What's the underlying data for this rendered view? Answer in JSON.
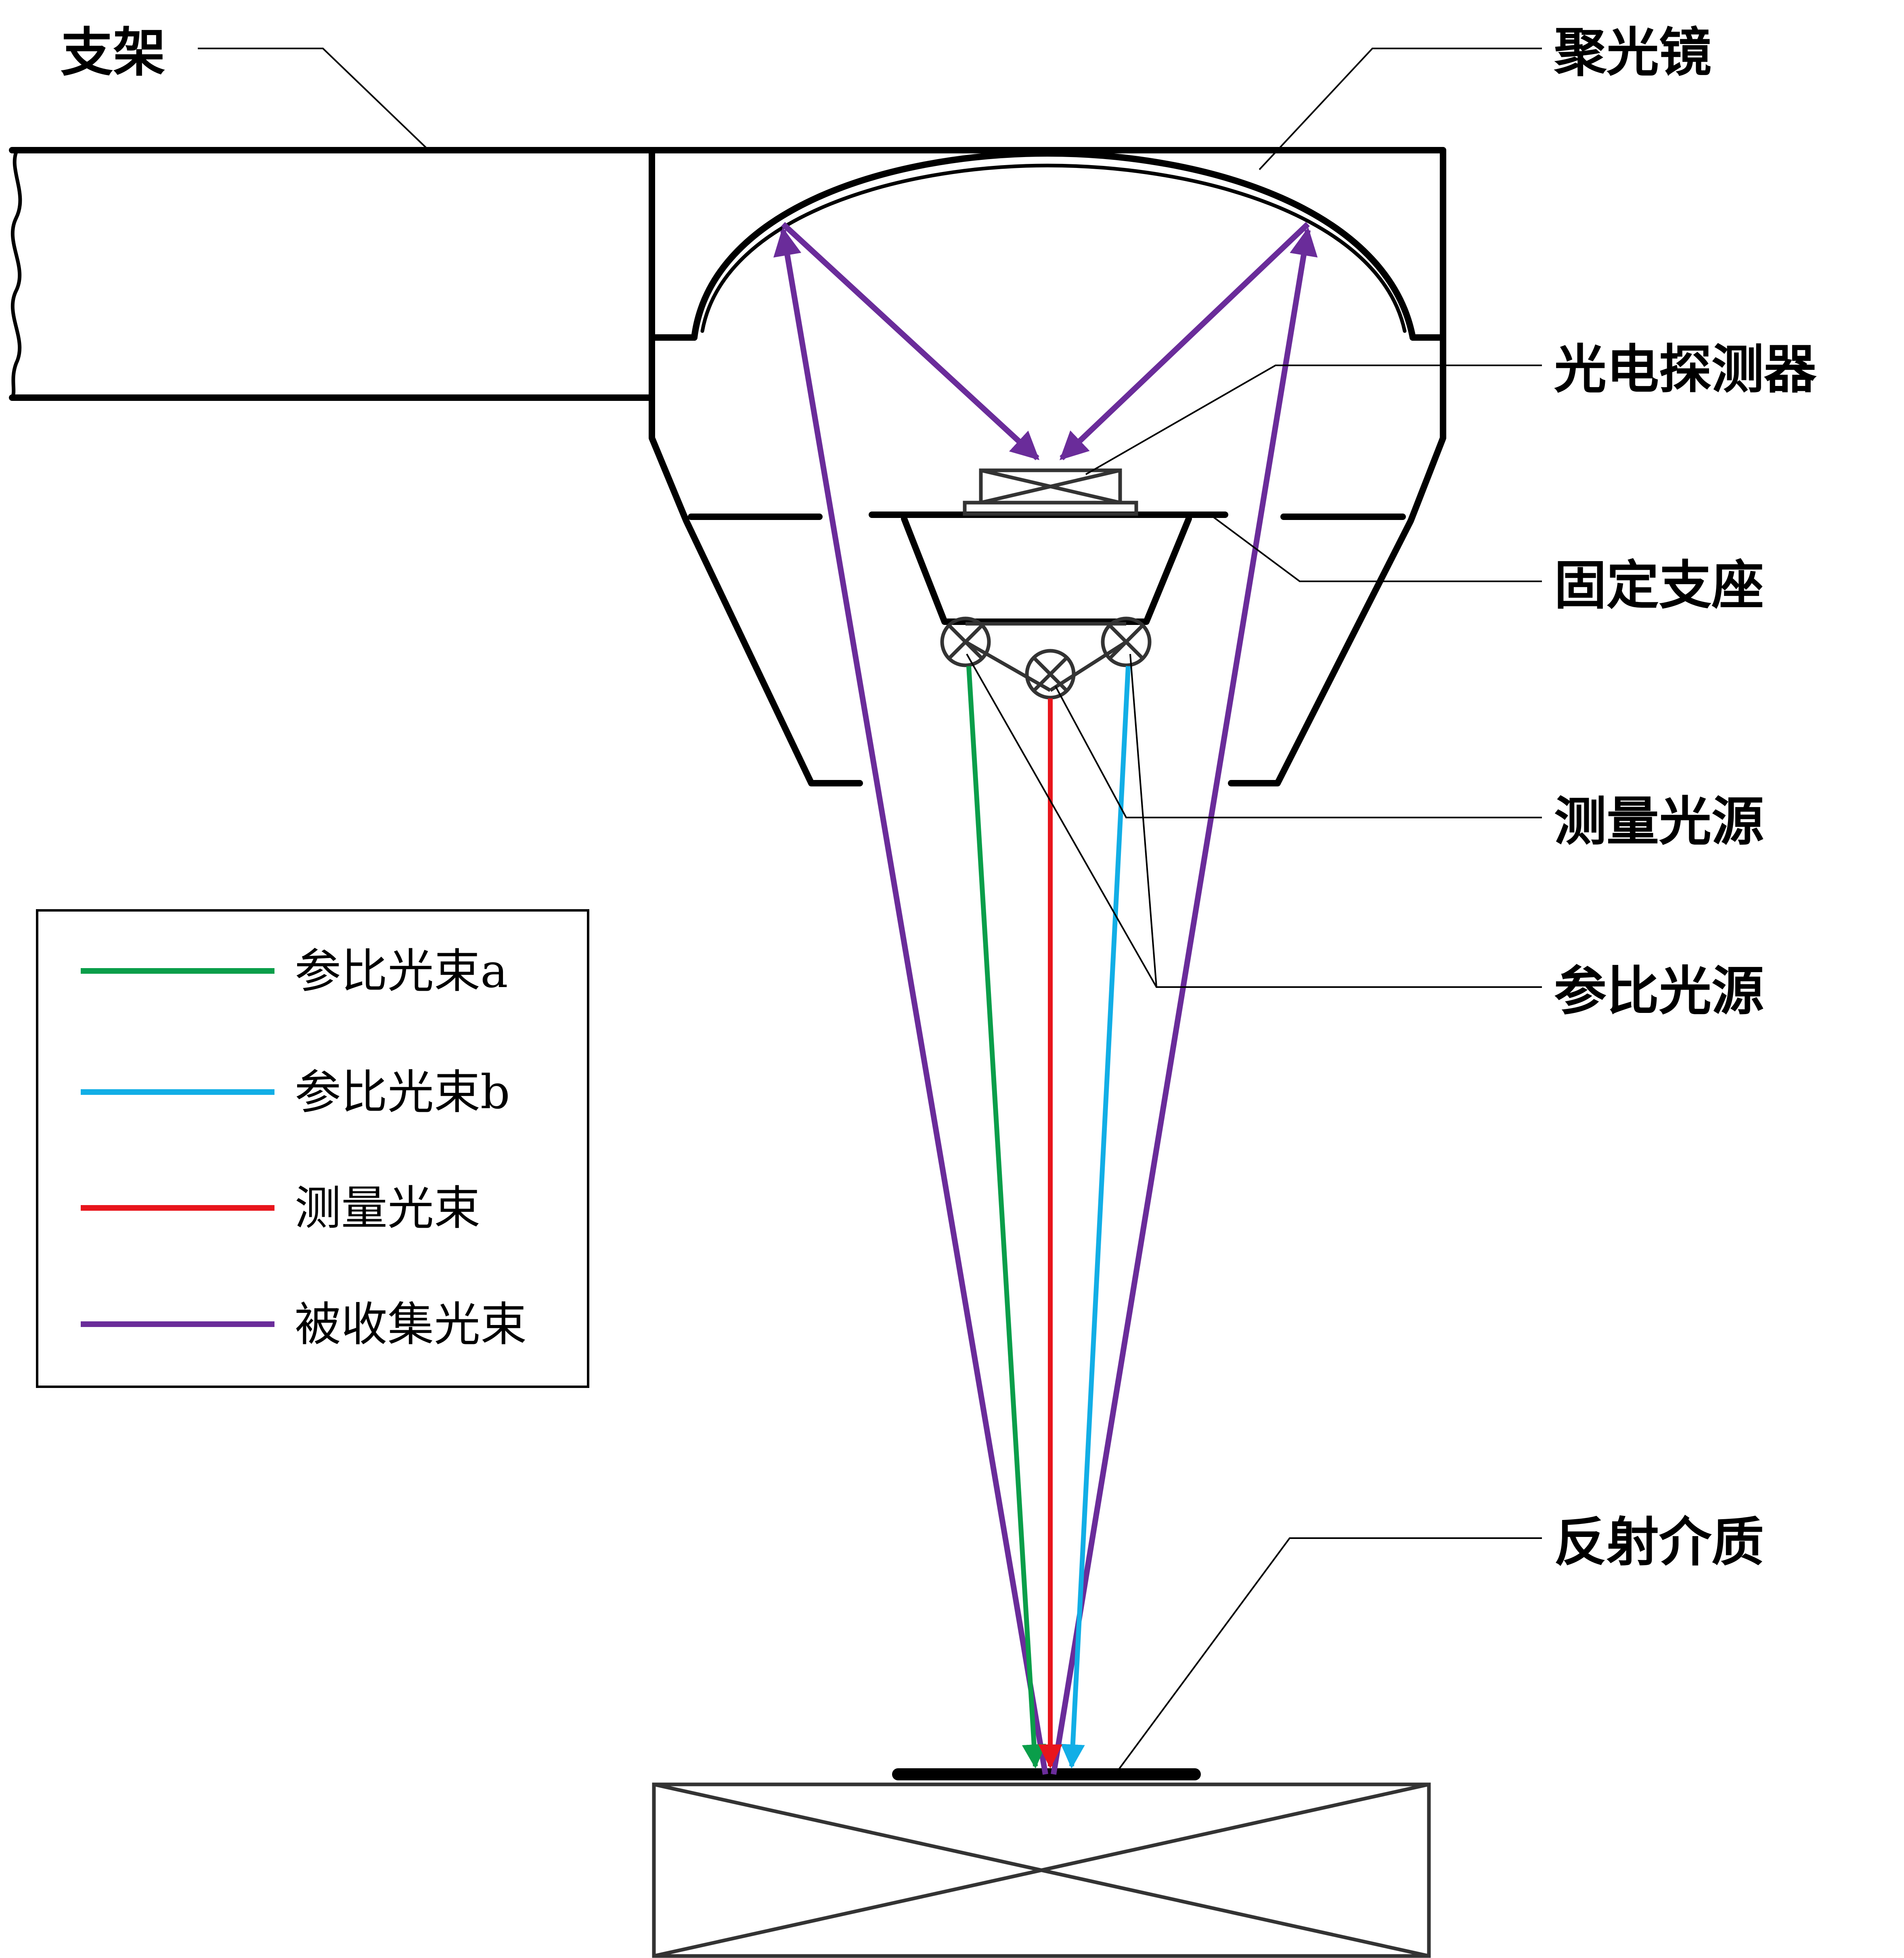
{
  "labels": {
    "bracket": "支架",
    "condenser": "聚光镜",
    "photodetector": "光电探测器",
    "fixed_base": "固定支座",
    "measure_source": "测量光源",
    "reference_source": "参比光源",
    "reflective_medium": "反射介质"
  },
  "legend": {
    "items": [
      {
        "label": "参比光束a",
        "color": "#0a9e4a"
      },
      {
        "label": "参比光束b",
        "color": "#12aee6"
      },
      {
        "label": "测量光束",
        "color": "#e8151c"
      },
      {
        "label": "被收集光束",
        "color": "#6a2c9a"
      }
    ]
  },
  "colors": {
    "reference_a": "#0a9e4a",
    "reference_b": "#12aee6",
    "measure": "#e8151c",
    "collected": "#6a2c9a"
  }
}
